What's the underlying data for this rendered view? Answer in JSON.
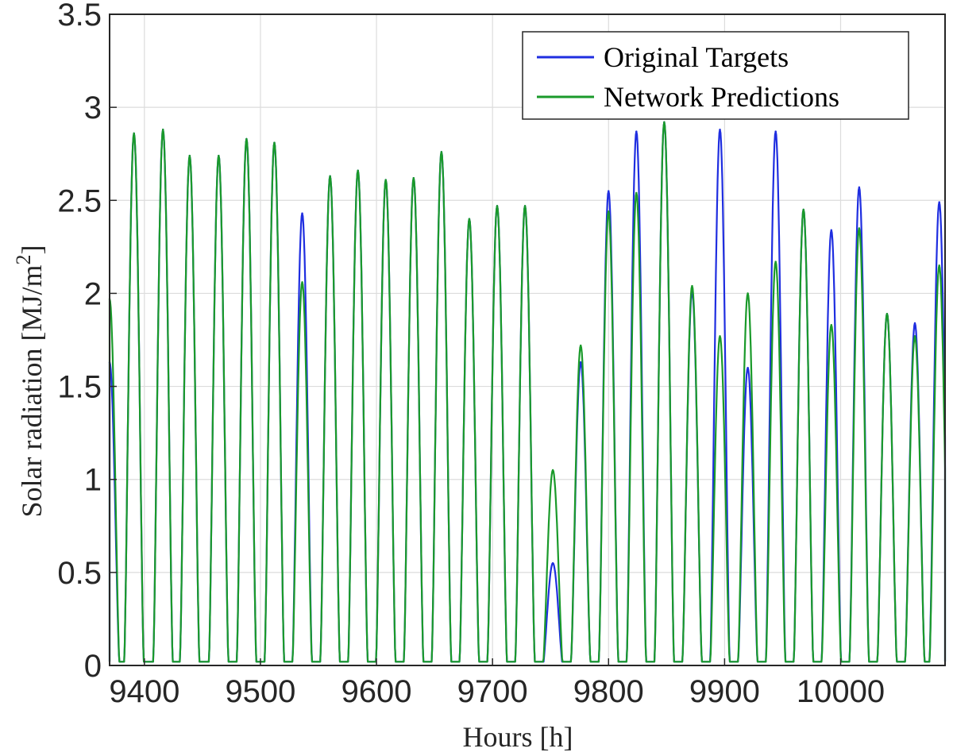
{
  "chart_data": {
    "type": "line",
    "xlabel": "Hours [h]",
    "ylabel_main": "Solar radiation [MJ/m",
    "ylabel_sup": "2",
    "ylabel_close": "]",
    "xlim": [
      9370,
      10090
    ],
    "ylim": [
      0,
      3.5
    ],
    "grid": true,
    "legend_position": "top-right",
    "x_ticks": [
      9400,
      9500,
      9600,
      9700,
      9800,
      9900,
      10000
    ],
    "x_tick_labels": [
      "9400",
      "9500",
      "9600",
      "9700",
      "9800",
      "9900",
      "10000"
    ],
    "y_ticks": [
      0,
      0.5,
      1,
      1.5,
      2,
      2.5,
      3,
      3.5
    ],
    "y_tick_labels": [
      "0",
      "0.5",
      "1",
      "1.5",
      "2",
      "2.5",
      "3",
      "3.5"
    ],
    "series": [
      {
        "name": "Original Targets",
        "color": "#1f2ee0",
        "daily_peak_hours": [
          9370,
          9391,
          9416,
          9439,
          9464,
          9488,
          9512,
          9536,
          9560,
          9584,
          9608,
          9632,
          9656,
          9680,
          9704,
          9728,
          9752,
          9776,
          9800,
          9824,
          9848,
          9872,
          9896,
          9920,
          9944,
          9968,
          9992,
          10016,
          10040,
          10064,
          10085
        ],
        "daily_peak_values": [
          1.63,
          2.86,
          2.88,
          2.74,
          2.74,
          2.83,
          2.81,
          2.43,
          2.63,
          2.66,
          2.61,
          2.62,
          2.76,
          2.4,
          2.47,
          2.47,
          0.55,
          1.63,
          2.55,
          2.87,
          2.92,
          2.01,
          2.88,
          1.6,
          2.87,
          2.45,
          2.34,
          2.57,
          1.89,
          1.84,
          2.49
        ]
      },
      {
        "name": "Network Predictions",
        "color": "#1a9a2a",
        "daily_peak_hours": [
          9370,
          9391,
          9416,
          9439,
          9464,
          9488,
          9512,
          9536,
          9560,
          9584,
          9608,
          9632,
          9656,
          9680,
          9704,
          9728,
          9752,
          9776,
          9800,
          9824,
          9848,
          9872,
          9896,
          9920,
          9944,
          9968,
          9992,
          10016,
          10040,
          10064,
          10085
        ],
        "daily_peak_values": [
          1.97,
          2.86,
          2.88,
          2.74,
          2.74,
          2.83,
          2.81,
          2.06,
          2.63,
          2.66,
          2.61,
          2.62,
          2.76,
          2.4,
          2.47,
          2.47,
          1.05,
          1.72,
          2.44,
          2.54,
          2.92,
          2.04,
          1.77,
          2.0,
          2.17,
          2.45,
          1.83,
          2.35,
          1.89,
          1.77,
          2.15
        ]
      }
    ]
  }
}
